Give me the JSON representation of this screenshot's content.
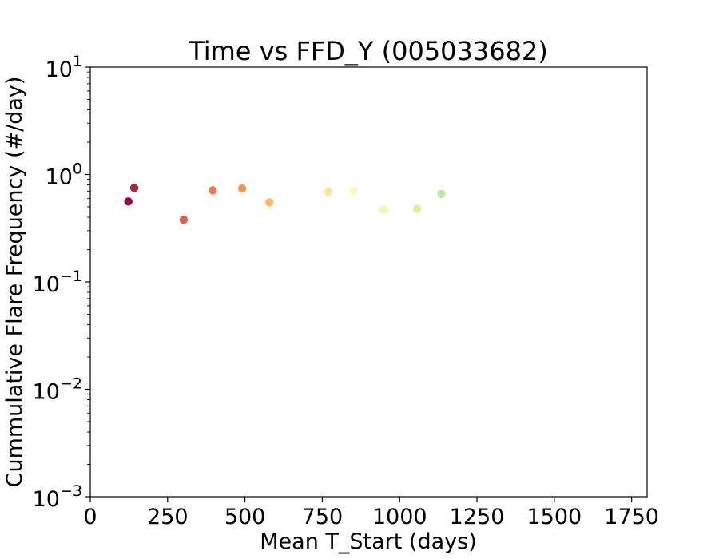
{
  "chart_data": {
    "type": "scatter",
    "title": "Time vs FFD_Y (005033682)",
    "xlabel": "Mean T_Start (days)",
    "ylabel": "Cummulative Flare Frequency (#/day)",
    "xlim": [
      0,
      1800
    ],
    "ylim": [
      0.001,
      10
    ],
    "y_scale": "log",
    "grid": false,
    "legend": "none",
    "x_ticks": [
      {
        "value": 0,
        "label": "0"
      },
      {
        "value": 250,
        "label": "250"
      },
      {
        "value": 500,
        "label": "500"
      },
      {
        "value": 750,
        "label": "750"
      },
      {
        "value": 1000,
        "label": "1000"
      },
      {
        "value": 1250,
        "label": "1250"
      },
      {
        "value": 1500,
        "label": "1500"
      },
      {
        "value": 1750,
        "label": "1750"
      }
    ],
    "y_ticks": [
      {
        "value": 10,
        "base": "10",
        "exp": "1"
      },
      {
        "value": 1,
        "base": "10",
        "exp": "0"
      },
      {
        "value": 0.1,
        "base": "10",
        "exp": "−1"
      },
      {
        "value": 0.01,
        "base": "10",
        "exp": "−2"
      },
      {
        "value": 0.001,
        "base": "10",
        "exp": "−3"
      }
    ],
    "points": [
      {
        "x": 123,
        "y": 0.56,
        "color": "#9e0142"
      },
      {
        "x": 142,
        "y": 0.75,
        "color": "#b0254a"
      },
      {
        "x": 302,
        "y": 0.38,
        "color": "#e55d4a"
      },
      {
        "x": 396,
        "y": 0.71,
        "color": "#f07b4a"
      },
      {
        "x": 491,
        "y": 0.74,
        "color": "#f99555"
      },
      {
        "x": 579,
        "y": 0.55,
        "color": "#fdb768"
      },
      {
        "x": 770,
        "y": 0.69,
        "color": "#fee590"
      },
      {
        "x": 851,
        "y": 0.7,
        "color": "#fefbb9"
      },
      {
        "x": 948,
        "y": 0.47,
        "color": "#f1f9a9"
      },
      {
        "x": 1056,
        "y": 0.48,
        "color": "#dcf095"
      },
      {
        "x": 1135,
        "y": 0.66,
        "color": "#bfe5a0"
      }
    ]
  }
}
